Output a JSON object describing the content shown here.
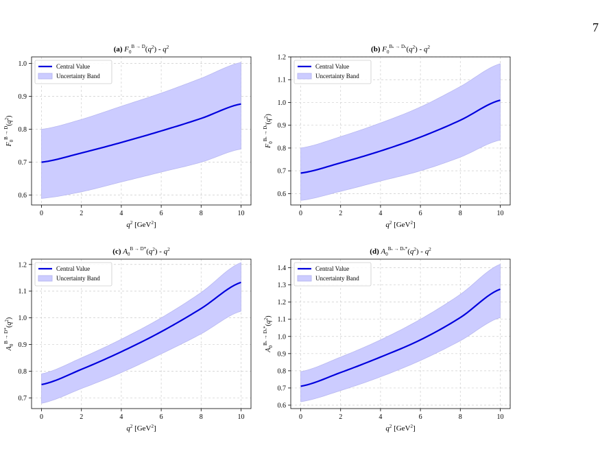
{
  "page": {
    "page_number": "7",
    "footer_fragment": "B → D q2 ... B_s → D_s q2 ... B → D* q2 ... B_s → D_s* q2"
  },
  "colors": {
    "line": "#0000dd",
    "band_fill": "#ccccff",
    "band_stroke": "#b8b8f0",
    "grid": "#cccccc"
  },
  "chart_data": [
    {
      "type": "area",
      "title": "(a) F0^{B→D}(q²) - q²",
      "title_bold": "(a)",
      "title_rest": "F₀ᴮ⁻ᴰ(q²) - q²",
      "xlabel": "q² [GeV²]",
      "ylabel": "F₀ᴮ→ᴰ(q²)",
      "xlim": [
        -0.5,
        10.5
      ],
      "ylim": [
        0.57,
        1.02
      ],
      "xticks": [
        0,
        2,
        4,
        6,
        8,
        10
      ],
      "yticks": [
        0.6,
        0.7,
        0.8,
        0.9,
        1.0
      ],
      "ytick_labels": [
        "0.6",
        "0.7",
        "0.8",
        "0.9",
        "1.0"
      ],
      "grid": true,
      "legend_position": "top-left",
      "series": [
        {
          "name": "Central Value",
          "kind": "line",
          "x": [
            0,
            2,
            4,
            6,
            8,
            10
          ],
          "values": [
            0.7,
            0.728,
            0.76,
            0.795,
            0.833,
            0.877
          ]
        },
        {
          "name": "Uncertainty Band",
          "kind": "band",
          "x": [
            0,
            2,
            4,
            6,
            8,
            10
          ],
          "lower": [
            0.59,
            0.61,
            0.64,
            0.67,
            0.7,
            0.74
          ],
          "upper": [
            0.8,
            0.83,
            0.87,
            0.91,
            0.955,
            1.003
          ]
        }
      ]
    },
    {
      "type": "area",
      "title": "(b) F0^{Bs→Ds}(q²) - q²",
      "title_bold": "(b)",
      "title_rest": "F₀(q²) - q²",
      "xlabel": "q² [GeV²]",
      "ylabel": "F₀(q²)",
      "xlim": [
        -0.5,
        10.5
      ],
      "ylim": [
        0.55,
        1.2
      ],
      "xticks": [
        0,
        2,
        4,
        6,
        8,
        10
      ],
      "yticks": [
        0.6,
        0.7,
        0.8,
        0.9,
        1.0,
        1.1,
        1.2
      ],
      "ytick_labels": [
        "0.6",
        "0.7",
        "0.8",
        "0.9",
        "1.0",
        "1.1",
        "1.2"
      ],
      "grid": true,
      "legend_position": "top-left",
      "series": [
        {
          "name": "Central Value",
          "kind": "line",
          "x": [
            0,
            2,
            4,
            6,
            8,
            10
          ],
          "values": [
            0.69,
            0.735,
            0.787,
            0.848,
            0.922,
            1.01
          ]
        },
        {
          "name": "Uncertainty Band",
          "kind": "band",
          "x": [
            0,
            2,
            4,
            6,
            8,
            10
          ],
          "lower": [
            0.57,
            0.61,
            0.655,
            0.7,
            0.76,
            0.835
          ],
          "upper": [
            0.8,
            0.85,
            0.91,
            0.98,
            1.07,
            1.17
          ]
        }
      ]
    },
    {
      "type": "area",
      "title": "(c) A0^{B→D*}(q²) - q²",
      "title_bold": "(c)",
      "title_rest": "A₀(q²) - q²",
      "xlabel": "q² [GeV²]",
      "ylabel": "A₀(q²)",
      "xlim": [
        -0.5,
        10.5
      ],
      "ylim": [
        0.66,
        1.22
      ],
      "xticks": [
        0,
        2,
        4,
        6,
        8,
        10
      ],
      "yticks": [
        0.7,
        0.8,
        0.9,
        1.0,
        1.1,
        1.2
      ],
      "ytick_labels": [
        "0.7",
        "0.8",
        "0.9",
        "1.0",
        "1.1",
        "1.2"
      ],
      "grid": true,
      "legend_position": "top-left",
      "series": [
        {
          "name": "Central Value",
          "kind": "line",
          "x": [
            0,
            2,
            4,
            6,
            8,
            10
          ],
          "values": [
            0.75,
            0.807,
            0.873,
            0.948,
            1.035,
            1.133
          ]
        },
        {
          "name": "Uncertainty Band",
          "kind": "band",
          "x": [
            0,
            2,
            4,
            6,
            8,
            10
          ],
          "lower": [
            0.68,
            0.735,
            0.795,
            0.865,
            0.94,
            1.025
          ],
          "upper": [
            0.79,
            0.85,
            0.92,
            1.0,
            1.095,
            1.207
          ]
        }
      ]
    },
    {
      "type": "area",
      "title": "(d) A0^{Bs→Ds*}(q²) - q²",
      "title_bold": "(d)",
      "title_rest": "A₀(q²) - q²",
      "xlabel": "q² [GeV²]",
      "ylabel": "A₀(q²)",
      "xlim": [
        -0.5,
        10.5
      ],
      "ylim": [
        0.58,
        1.45
      ],
      "xticks": [
        0,
        2,
        4,
        6,
        8,
        10
      ],
      "yticks": [
        0.6,
        0.7,
        0.8,
        0.9,
        1.0,
        1.1,
        1.2,
        1.3,
        1.4
      ],
      "ytick_labels": [
        "0.6",
        "0.7",
        "0.8",
        "0.9",
        "1.0",
        "1.1",
        "1.2",
        "1.3",
        "1.4"
      ],
      "grid": true,
      "legend_position": "top-left",
      "series": [
        {
          "name": "Central Value",
          "kind": "line",
          "x": [
            0,
            2,
            4,
            6,
            8,
            10
          ],
          "values": [
            0.71,
            0.79,
            0.88,
            0.98,
            1.11,
            1.275
          ]
        },
        {
          "name": "Uncertainty Band",
          "kind": "band",
          "x": [
            0,
            2,
            4,
            6,
            8,
            10
          ],
          "lower": [
            0.62,
            0.685,
            0.765,
            0.86,
            0.975,
            1.11
          ],
          "upper": [
            0.795,
            0.88,
            0.98,
            1.1,
            1.245,
            1.42
          ]
        }
      ]
    }
  ]
}
